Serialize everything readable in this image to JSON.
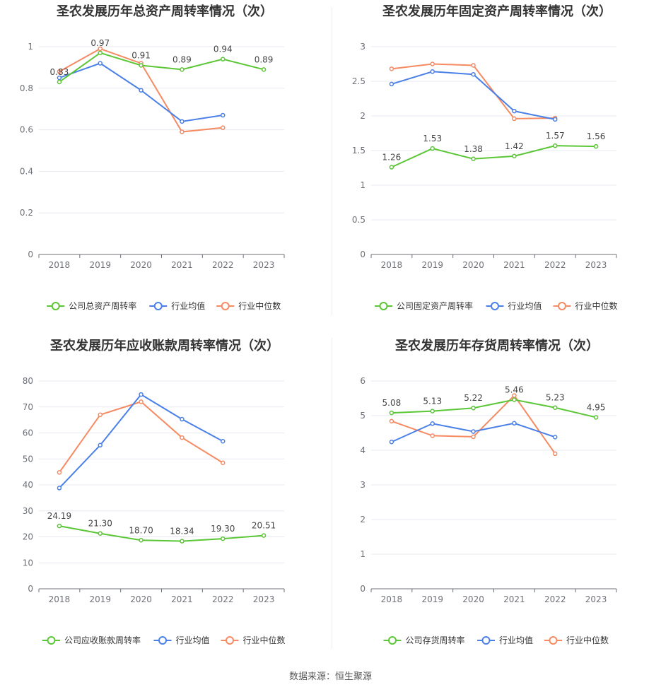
{
  "source_text": "数据来源：恒生聚源",
  "chart_data": [
    {
      "type": "line",
      "title": "圣农发展历年总资产周转率情况（次）",
      "categories": [
        "2018",
        "2019",
        "2020",
        "2021",
        "2022",
        "2023"
      ],
      "ylim": [
        0,
        1
      ],
      "yticks": [
        0,
        0.2,
        0.4,
        0.6,
        0.8,
        1
      ],
      "ytick_labels": [
        "0",
        "0.2",
        "0.4",
        "0.6",
        "0.8",
        "1"
      ],
      "grid": true,
      "legend_position": "bottom",
      "series": [
        {
          "name": "公司总资产周转率",
          "color": "#5bc736",
          "values": [
            0.83,
            0.97,
            0.91,
            0.89,
            0.94,
            0.89
          ],
          "labels": [
            "0.83",
            "0.97",
            "0.91",
            "0.89",
            "0.94",
            "0.89"
          ]
        },
        {
          "name": "行业均值",
          "color": "#4a80e8",
          "values": [
            0.85,
            0.92,
            0.79,
            0.64,
            0.67,
            null
          ]
        },
        {
          "name": "行业中位数",
          "color": "#f68a63",
          "values": [
            0.88,
            0.99,
            0.92,
            0.59,
            0.61,
            null
          ]
        }
      ]
    },
    {
      "type": "line",
      "title": "圣农发展历年固定资产周转率情况（次）",
      "categories": [
        "2018",
        "2019",
        "2020",
        "2021",
        "2022",
        "2023"
      ],
      "ylim": [
        0,
        3
      ],
      "yticks": [
        0,
        0.5,
        1,
        1.5,
        2,
        2.5,
        3
      ],
      "ytick_labels": [
        "0",
        "0.5",
        "1",
        "1.5",
        "2",
        "2.5",
        "3"
      ],
      "grid": true,
      "legend_position": "bottom",
      "series": [
        {
          "name": "公司固定资产周转率",
          "color": "#5bc736",
          "values": [
            1.26,
            1.53,
            1.38,
            1.42,
            1.57,
            1.56
          ],
          "labels": [
            "1.26",
            "1.53",
            "1.38",
            "1.42",
            "1.57",
            "1.56"
          ]
        },
        {
          "name": "行业均值",
          "color": "#4a80e8",
          "values": [
            2.46,
            2.64,
            2.6,
            2.07,
            1.95,
            null
          ]
        },
        {
          "name": "行业中位数",
          "color": "#f68a63",
          "values": [
            2.68,
            2.75,
            2.73,
            1.96,
            1.97,
            null
          ]
        }
      ]
    },
    {
      "type": "line",
      "title": "圣农发展历年应收账款周转率情况（次）",
      "categories": [
        "2018",
        "2019",
        "2020",
        "2021",
        "2022",
        "2023"
      ],
      "ylim": [
        0,
        80
      ],
      "yticks": [
        0,
        10,
        20,
        30,
        40,
        50,
        60,
        70,
        80
      ],
      "ytick_labels": [
        "0",
        "10",
        "20",
        "30",
        "40",
        "50",
        "60",
        "70",
        "80"
      ],
      "grid": true,
      "legend_position": "bottom",
      "series": [
        {
          "name": "公司应收账款周转率",
          "color": "#5bc736",
          "values": [
            24.19,
            21.3,
            18.7,
            18.34,
            19.3,
            20.51
          ],
          "labels": [
            "24.19",
            "21.30",
            "18.70",
            "18.34",
            "19.30",
            "20.51"
          ]
        },
        {
          "name": "行业均值",
          "color": "#4a80e8",
          "values": [
            38.8,
            55.3,
            74.8,
            65.3,
            56.8,
            null
          ]
        },
        {
          "name": "行业中位数",
          "color": "#f68a63",
          "values": [
            44.8,
            67.0,
            72.0,
            58.2,
            48.5,
            null
          ]
        }
      ]
    },
    {
      "type": "line",
      "title": "圣农发展历年存货周转率情况（次）",
      "categories": [
        "2018",
        "2019",
        "2020",
        "2021",
        "2022",
        "2023"
      ],
      "ylim": [
        0,
        6
      ],
      "yticks": [
        0,
        1,
        2,
        3,
        4,
        5,
        6
      ],
      "ytick_labels": [
        "0",
        "1",
        "2",
        "3",
        "4",
        "5",
        "6"
      ],
      "grid": true,
      "legend_position": "bottom",
      "series": [
        {
          "name": "公司存货周转率",
          "color": "#5bc736",
          "values": [
            5.08,
            5.13,
            5.22,
            5.46,
            5.23,
            4.95
          ],
          "labels": [
            "5.08",
            "5.13",
            "5.22",
            "5.46",
            "5.23",
            "4.95"
          ]
        },
        {
          "name": "行业均值",
          "color": "#4a80e8",
          "values": [
            4.24,
            4.77,
            4.54,
            4.78,
            4.38,
            null
          ]
        },
        {
          "name": "行业中位数",
          "color": "#f68a63",
          "values": [
            4.84,
            4.42,
            4.39,
            5.58,
            3.9,
            null
          ]
        }
      ]
    }
  ]
}
